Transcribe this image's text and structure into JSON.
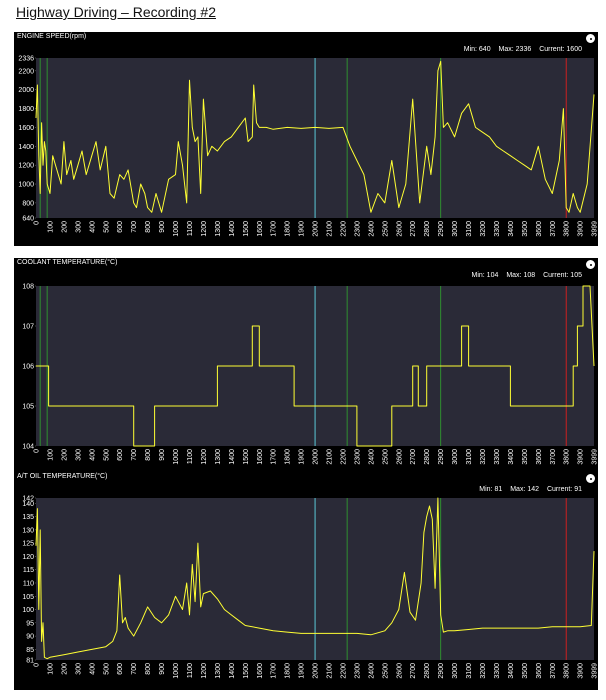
{
  "page_title": "Highway Driving – Recording #2",
  "colors": {
    "trace": "#ffff33",
    "plot_bg": "#2a2a37",
    "panel_bg": "#000000",
    "marker_cyan": "#5bc8d8",
    "marker_green": "#2f8f2f",
    "marker_red": "#cc2020"
  },
  "x_ticks": [
    "0",
    "100",
    "200",
    "300",
    "400",
    "500",
    "600",
    "700",
    "800",
    "900",
    "1000",
    "1100",
    "1200",
    "1300",
    "1400",
    "1500",
    "1600",
    "1700",
    "1800",
    "1900",
    "2000",
    "2100",
    "2200",
    "2300",
    "2400",
    "2500",
    "2600",
    "2700",
    "2800",
    "2900",
    "3000",
    "3100",
    "3200",
    "3300",
    "3400",
    "3500",
    "3600",
    "3700",
    "3800",
    "3900",
    "3999"
  ],
  "chart_data": [
    {
      "type": "line",
      "title": "ENGINE SPEED(rpm)",
      "stats": {
        "min": "Min: 640",
        "max": "Max: 2336",
        "current": "Current: 1600"
      },
      "xlim": [
        0,
        3999
      ],
      "ylim": [
        640,
        2336
      ],
      "y_ticks": [
        640,
        800,
        1000,
        1200,
        1400,
        1600,
        1800,
        2000,
        2200,
        2336
      ],
      "markers": [
        {
          "x": 30,
          "color": "green"
        },
        {
          "x": 80,
          "color": "green"
        },
        {
          "x": 2000,
          "color": "cyan"
        },
        {
          "x": 2230,
          "color": "green"
        },
        {
          "x": 2900,
          "color": "green"
        },
        {
          "x": 3800,
          "color": "red"
        }
      ],
      "series": [
        {
          "x": [
            0,
            10,
            20,
            30,
            40,
            50,
            60,
            70,
            80,
            100,
            120,
            150,
            180,
            200,
            220,
            250,
            270,
            300,
            330,
            360,
            400,
            430,
            460,
            500,
            530,
            560,
            600,
            630,
            660,
            700,
            720,
            750,
            780,
            800,
            830,
            860,
            900,
            950,
            1000,
            1020,
            1050,
            1080,
            1100,
            1120,
            1140,
            1160,
            1180,
            1200,
            1230,
            1260,
            1300,
            1350,
            1400,
            1450,
            1500,
            1520,
            1550,
            1560,
            1580,
            1600,
            1650,
            1700,
            1800,
            1900,
            2000,
            2100,
            2200,
            2250,
            2300,
            2350,
            2400,
            2450,
            2500,
            2550,
            2600,
            2650,
            2700,
            2750,
            2800,
            2830,
            2860,
            2880,
            2900,
            2920,
            2950,
            3000,
            3050,
            3100,
            3150,
            3200,
            3250,
            3300,
            3350,
            3400,
            3450,
            3500,
            3550,
            3600,
            3650,
            3700,
            3750,
            3780,
            3800,
            3820,
            3850,
            3880,
            3900,
            3950,
            3999
          ],
          "y": [
            1700,
            2050,
            1300,
            900,
            1650,
            1200,
            1450,
            1350,
            1000,
            900,
            1300,
            1150,
            1000,
            1450,
            1100,
            1250,
            1050,
            1200,
            1350,
            1100,
            1300,
            1450,
            1150,
            1400,
            900,
            850,
            1100,
            1050,
            1150,
            800,
            750,
            1000,
            900,
            750,
            700,
            900,
            700,
            1050,
            1100,
            1450,
            1200,
            800,
            2100,
            1600,
            1450,
            1500,
            900,
            1900,
            1300,
            1400,
            1350,
            1450,
            1500,
            1600,
            1700,
            1450,
            1500,
            2050,
            1650,
            1600,
            1600,
            1580,
            1600,
            1590,
            1600,
            1590,
            1600,
            1400,
            1250,
            1100,
            700,
            900,
            800,
            1250,
            750,
            1000,
            1900,
            800,
            1400,
            1100,
            1500,
            2200,
            2300,
            1600,
            1650,
            1500,
            1750,
            1850,
            1600,
            1550,
            1500,
            1400,
            1350,
            1300,
            1250,
            1200,
            1150,
            1400,
            1050,
            900,
            1250,
            1800,
            750,
            700,
            900,
            750,
            700,
            1000,
            1950
          ]
        }
      ]
    },
    {
      "type": "line",
      "title": "COOLANT TEMPERATURE(°C)",
      "stats": {
        "min": "Min: 104",
        "max": "Max: 108",
        "current": "Current: 105"
      },
      "xlim": [
        0,
        3999
      ],
      "ylim": [
        104,
        108
      ],
      "y_ticks": [
        104,
        105,
        106,
        107,
        108
      ],
      "markers": [
        {
          "x": 30,
          "color": "green"
        },
        {
          "x": 80,
          "color": "green"
        },
        {
          "x": 2000,
          "color": "cyan"
        },
        {
          "x": 2230,
          "color": "green"
        },
        {
          "x": 2900,
          "color": "green"
        },
        {
          "x": 3800,
          "color": "red"
        }
      ],
      "series": [
        {
          "x": [
            0,
            90,
            90,
            700,
            700,
            850,
            850,
            1300,
            1300,
            1550,
            1550,
            1600,
            1600,
            1850,
            1850,
            2300,
            2300,
            2550,
            2550,
            2700,
            2700,
            2740,
            2740,
            2800,
            2800,
            3050,
            3050,
            3100,
            3100,
            3400,
            3400,
            3850,
            3850,
            3880,
            3880,
            3920,
            3920,
            3970,
            3999
          ],
          "y": [
            106,
            106,
            105,
            105,
            104,
            104,
            105,
            105,
            106,
            106,
            107,
            107,
            106,
            106,
            105,
            105,
            104,
            104,
            105,
            105,
            106,
            106,
            105,
            105,
            106,
            106,
            107,
            107,
            106,
            106,
            105,
            105,
            106,
            106,
            107,
            107,
            108,
            108,
            106
          ]
        }
      ]
    },
    {
      "type": "line",
      "title": "A/T OIL TEMPERATURE(°C)",
      "stats": {
        "min": "Min: 81",
        "max": "Max: 142",
        "current": "Current: 91"
      },
      "xlim": [
        0,
        3999
      ],
      "ylim": [
        81,
        142
      ],
      "y_ticks": [
        81,
        85,
        90,
        95,
        100,
        105,
        110,
        115,
        120,
        125,
        130,
        135,
        140,
        142
      ],
      "markers": [
        {
          "x": 2000,
          "color": "cyan"
        },
        {
          "x": 2230,
          "color": "green"
        },
        {
          "x": 2900,
          "color": "green"
        },
        {
          "x": 3800,
          "color": "red"
        }
      ],
      "series": [
        {
          "x": [
            0,
            10,
            20,
            30,
            40,
            50,
            60,
            80,
            100,
            200,
            300,
            400,
            500,
            550,
            580,
            600,
            620,
            640,
            660,
            700,
            750,
            800,
            850,
            900,
            950,
            1000,
            1050,
            1080,
            1100,
            1120,
            1140,
            1160,
            1180,
            1200,
            1250,
            1300,
            1350,
            1400,
            1450,
            1500,
            1600,
            1700,
            1800,
            1900,
            2000,
            2100,
            2200,
            2300,
            2400,
            2500,
            2550,
            2600,
            2640,
            2680,
            2720,
            2760,
            2780,
            2800,
            2820,
            2840,
            2860,
            2880,
            2900,
            2920,
            2950,
            3000,
            3100,
            3200,
            3300,
            3400,
            3500,
            3600,
            3700,
            3800,
            3900,
            3980,
            3999
          ],
          "y": [
            124,
            138,
            100,
            130,
            88,
            95,
            82,
            81.5,
            82,
            83,
            84,
            85,
            86,
            88,
            92,
            113,
            95,
            97,
            93,
            90,
            95,
            101,
            97,
            95,
            98,
            105,
            100,
            110,
            98,
            117,
            103,
            125,
            101,
            106,
            107,
            104,
            100,
            98,
            96,
            94,
            93,
            92,
            91.5,
            91,
            91,
            91,
            91,
            91,
            90.5,
            92,
            95,
            100,
            114,
            99,
            96,
            110,
            129,
            135,
            139,
            134,
            108,
            142,
            98,
            91.5,
            92,
            92,
            92.5,
            93,
            93,
            93,
            93,
            93,
            93.5,
            93.5,
            93.5,
            94,
            122
          ]
        }
      ]
    }
  ]
}
